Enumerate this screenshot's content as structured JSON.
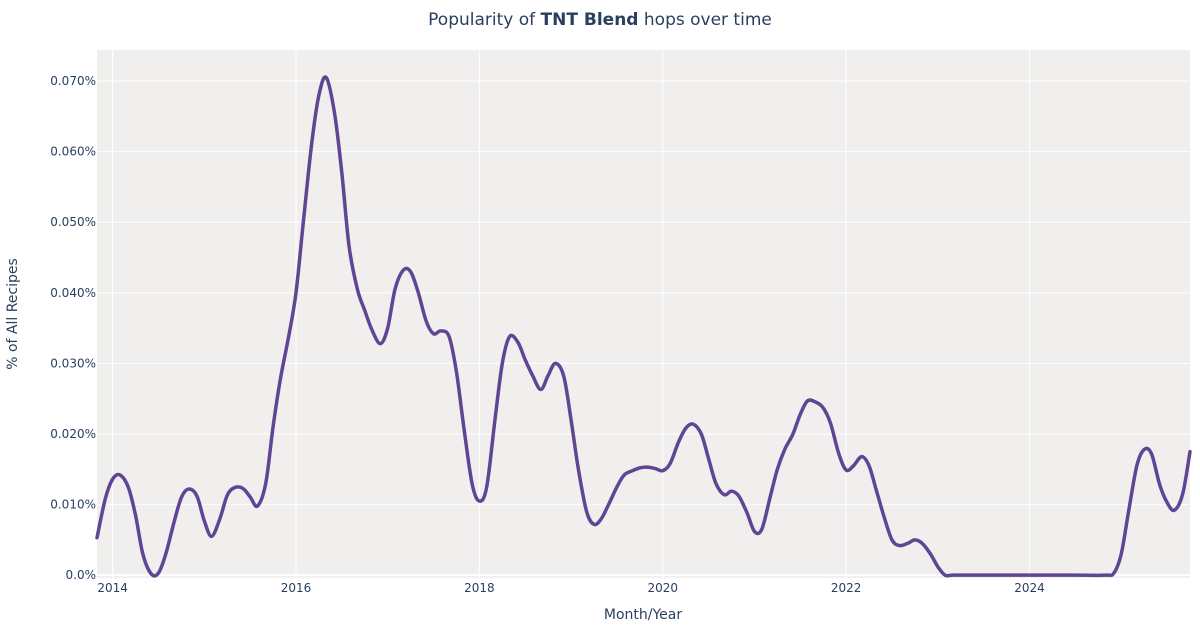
{
  "chart_data": {
    "type": "line",
    "title": {
      "prefix": "Popularity of ",
      "bold": "TNT Blend",
      "suffix": " hops over time"
    },
    "xlabel": "Month/Year",
    "ylabel": "% of All Recipes",
    "xlim": [
      2013.83,
      2025.75
    ],
    "ylim": [
      -0.0004,
      0.0744
    ],
    "x_ticks": [
      {
        "value": 2014,
        "label": "2014"
      },
      {
        "value": 2016,
        "label": "2016"
      },
      {
        "value": 2018,
        "label": "2018"
      },
      {
        "value": 2020,
        "label": "2020"
      },
      {
        "value": 2022,
        "label": "2022"
      },
      {
        "value": 2024,
        "label": "2024"
      }
    ],
    "y_ticks": [
      {
        "value": 0.0,
        "label": "0.0%"
      },
      {
        "value": 0.01,
        "label": "0.010%"
      },
      {
        "value": 0.02,
        "label": "0.020%"
      },
      {
        "value": 0.03,
        "label": "0.030%"
      },
      {
        "value": 0.04,
        "label": "0.040%"
      },
      {
        "value": 0.05,
        "label": "0.050%"
      },
      {
        "value": 0.06,
        "label": "0.060%"
      },
      {
        "value": 0.07,
        "label": "0.070%"
      }
    ],
    "grid": true,
    "colors": {
      "line": "#5e4694",
      "plot_bg": "#f0efee",
      "grid": "#ffffff"
    },
    "series": [
      {
        "x": [
          2013.83,
          2013.92,
          2014.0,
          2014.08,
          2014.17,
          2014.25,
          2014.33,
          2014.42,
          2014.5,
          2014.58,
          2014.67,
          2014.75,
          2014.83,
          2014.92,
          2015.0,
          2015.08,
          2015.17,
          2015.25,
          2015.33,
          2015.42,
          2015.5,
          2015.58,
          2015.67,
          2015.75,
          2015.83,
          2015.92,
          2016.0,
          2016.08,
          2016.17,
          2016.25,
          2016.33,
          2016.42,
          2016.5,
          2016.58,
          2016.67,
          2016.75,
          2016.83,
          2016.92,
          2017.0,
          2017.08,
          2017.17,
          2017.25,
          2017.33,
          2017.42,
          2017.5,
          2017.58,
          2017.67,
          2017.75,
          2017.83,
          2017.92,
          2018.0,
          2018.08,
          2018.17,
          2018.25,
          2018.33,
          2018.42,
          2018.5,
          2018.58,
          2018.67,
          2018.75,
          2018.83,
          2018.92,
          2019.0,
          2019.08,
          2019.17,
          2019.25,
          2019.33,
          2019.42,
          2019.5,
          2019.58,
          2019.67,
          2019.75,
          2019.83,
          2019.92,
          2020.0,
          2020.08,
          2020.17,
          2020.25,
          2020.33,
          2020.42,
          2020.5,
          2020.58,
          2020.67,
          2020.75,
          2020.83,
          2020.92,
          2021.0,
          2021.08,
          2021.17,
          2021.25,
          2021.33,
          2021.42,
          2021.5,
          2021.58,
          2021.67,
          2021.75,
          2021.83,
          2021.92,
          2022.0,
          2022.08,
          2022.17,
          2022.25,
          2022.33,
          2022.42,
          2022.5,
          2022.58,
          2022.67,
          2022.75,
          2022.83,
          2022.92,
          2023.0,
          2023.08,
          2023.17,
          2023.5,
          2024.0,
          2024.5,
          2024.83,
          2024.92,
          2025.0,
          2025.08,
          2025.17,
          2025.25,
          2025.33,
          2025.42,
          2025.5,
          2025.58,
          2025.67,
          2025.75
        ],
        "values": [
          0.0053,
          0.0108,
          0.0136,
          0.0142,
          0.0125,
          0.0085,
          0.003,
          0.0002,
          0.0003,
          0.003,
          0.0075,
          0.011,
          0.0122,
          0.0112,
          0.0077,
          0.0055,
          0.008,
          0.0113,
          0.0124,
          0.0123,
          0.0111,
          0.0098,
          0.013,
          0.021,
          0.0278,
          0.0338,
          0.04,
          0.05,
          0.061,
          0.068,
          0.0705,
          0.0655,
          0.057,
          0.0465,
          0.0405,
          0.0375,
          0.0347,
          0.0328,
          0.035,
          0.0405,
          0.0432,
          0.043,
          0.0402,
          0.036,
          0.0342,
          0.0346,
          0.0338,
          0.0288,
          0.021,
          0.013,
          0.0105,
          0.0125,
          0.022,
          0.03,
          0.0338,
          0.033,
          0.0305,
          0.0283,
          0.0263,
          0.0283,
          0.03,
          0.0282,
          0.022,
          0.015,
          0.009,
          0.0072,
          0.008,
          0.0103,
          0.0125,
          0.0142,
          0.0148,
          0.0152,
          0.0153,
          0.0151,
          0.0148,
          0.0158,
          0.0188,
          0.0208,
          0.0214,
          0.02,
          0.0165,
          0.013,
          0.0114,
          0.0119,
          0.0112,
          0.0088,
          0.0062,
          0.0065,
          0.011,
          0.015,
          0.0178,
          0.02,
          0.0228,
          0.0247,
          0.0245,
          0.0237,
          0.0215,
          0.0172,
          0.0149,
          0.0155,
          0.0168,
          0.0155,
          0.012,
          0.008,
          0.005,
          0.0042,
          0.0045,
          0.005,
          0.0045,
          0.003,
          0.0012,
          0.0,
          0.0,
          0.0,
          0.0,
          0.0,
          0.0,
          0.0003,
          0.003,
          0.009,
          0.0155,
          0.0178,
          0.0172,
          0.0128,
          0.0103,
          0.0092,
          0.0115,
          0.0175
        ]
      }
    ]
  }
}
